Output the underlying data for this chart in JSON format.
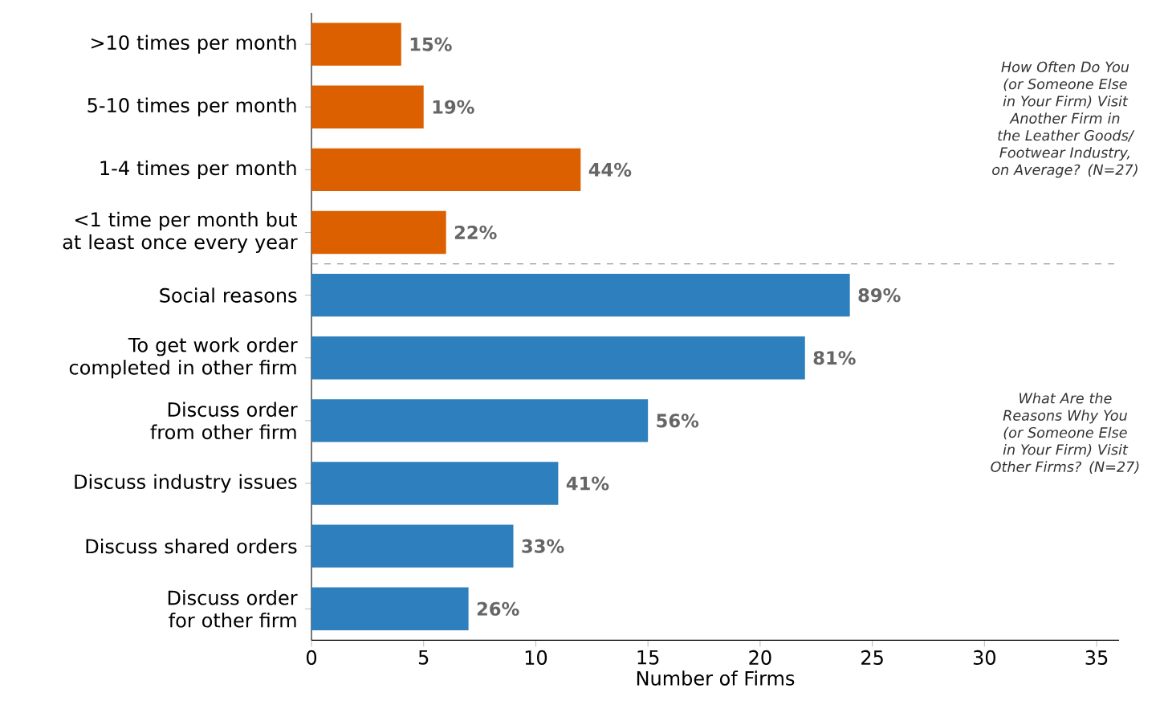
{
  "chart_data": {
    "type": "bar",
    "orientation": "horizontal",
    "xlabel": "Number of Firms",
    "categories": [
      ">10 times per month",
      "5-10 times per month",
      "1-4 times per month",
      "<1 time per month but at least once every year",
      "Social reasons",
      "To get work order completed in other firm",
      "Discuss order from other firm",
      "Discuss industry issues",
      "Discuss shared orders",
      "Discuss order for other firm"
    ],
    "values": [
      4,
      5,
      12,
      6,
      24,
      22,
      15,
      11,
      9,
      7
    ],
    "colors": [
      "#dd6000",
      "#dd6000",
      "#dd6000",
      "#dd6000",
      "#2d80bd",
      "#2d80bd",
      "#2d80bd",
      "#2d80bd",
      "#2d80bd",
      "#2d80bd"
    ],
    "xlim": [
      0,
      36
    ],
    "xticks": [
      0,
      5,
      10,
      15,
      20,
      25,
      30,
      35
    ],
    "annotations": [
      "How Often Do You (or Someone Else in Your Firm) Visit Another Firm in the Leather Goods/ Footwear Industry, on Average? (N=27)",
      "What Are the Reasons Why You (or Someone Else in Your Firm) Visit Other Firms? (N=27)",
      {
        "text": "15%",
        "x": 4,
        "y": ">10 times per month"
      },
      {
        "text": "19%",
        "x": 5,
        "y": "5-10 times per month"
      },
      {
        "text": "44%",
        "x": 12,
        "y": "1-4 times per month"
      },
      {
        "text": "22%",
        "x": 6,
        "y": "<1 time per month but at least once every year"
      },
      {
        "text": "89%",
        "x": 24,
        "y": "Social reasons"
      },
      {
        "text": "81%",
        "x": 22,
        "y": "To get work order completed in other firm"
      },
      {
        "text": "56%",
        "x": 15,
        "y": "Discuss order from other firm"
      },
      {
        "text": "41%",
        "x": 11,
        "y": "Discuss industry issues"
      },
      {
        "text": "33%",
        "x": 9,
        "y": "Discuss shared orders"
      },
      {
        "text": "26%",
        "x": 7,
        "y": "Discuss order for other firm"
      }
    ]
  }
}
